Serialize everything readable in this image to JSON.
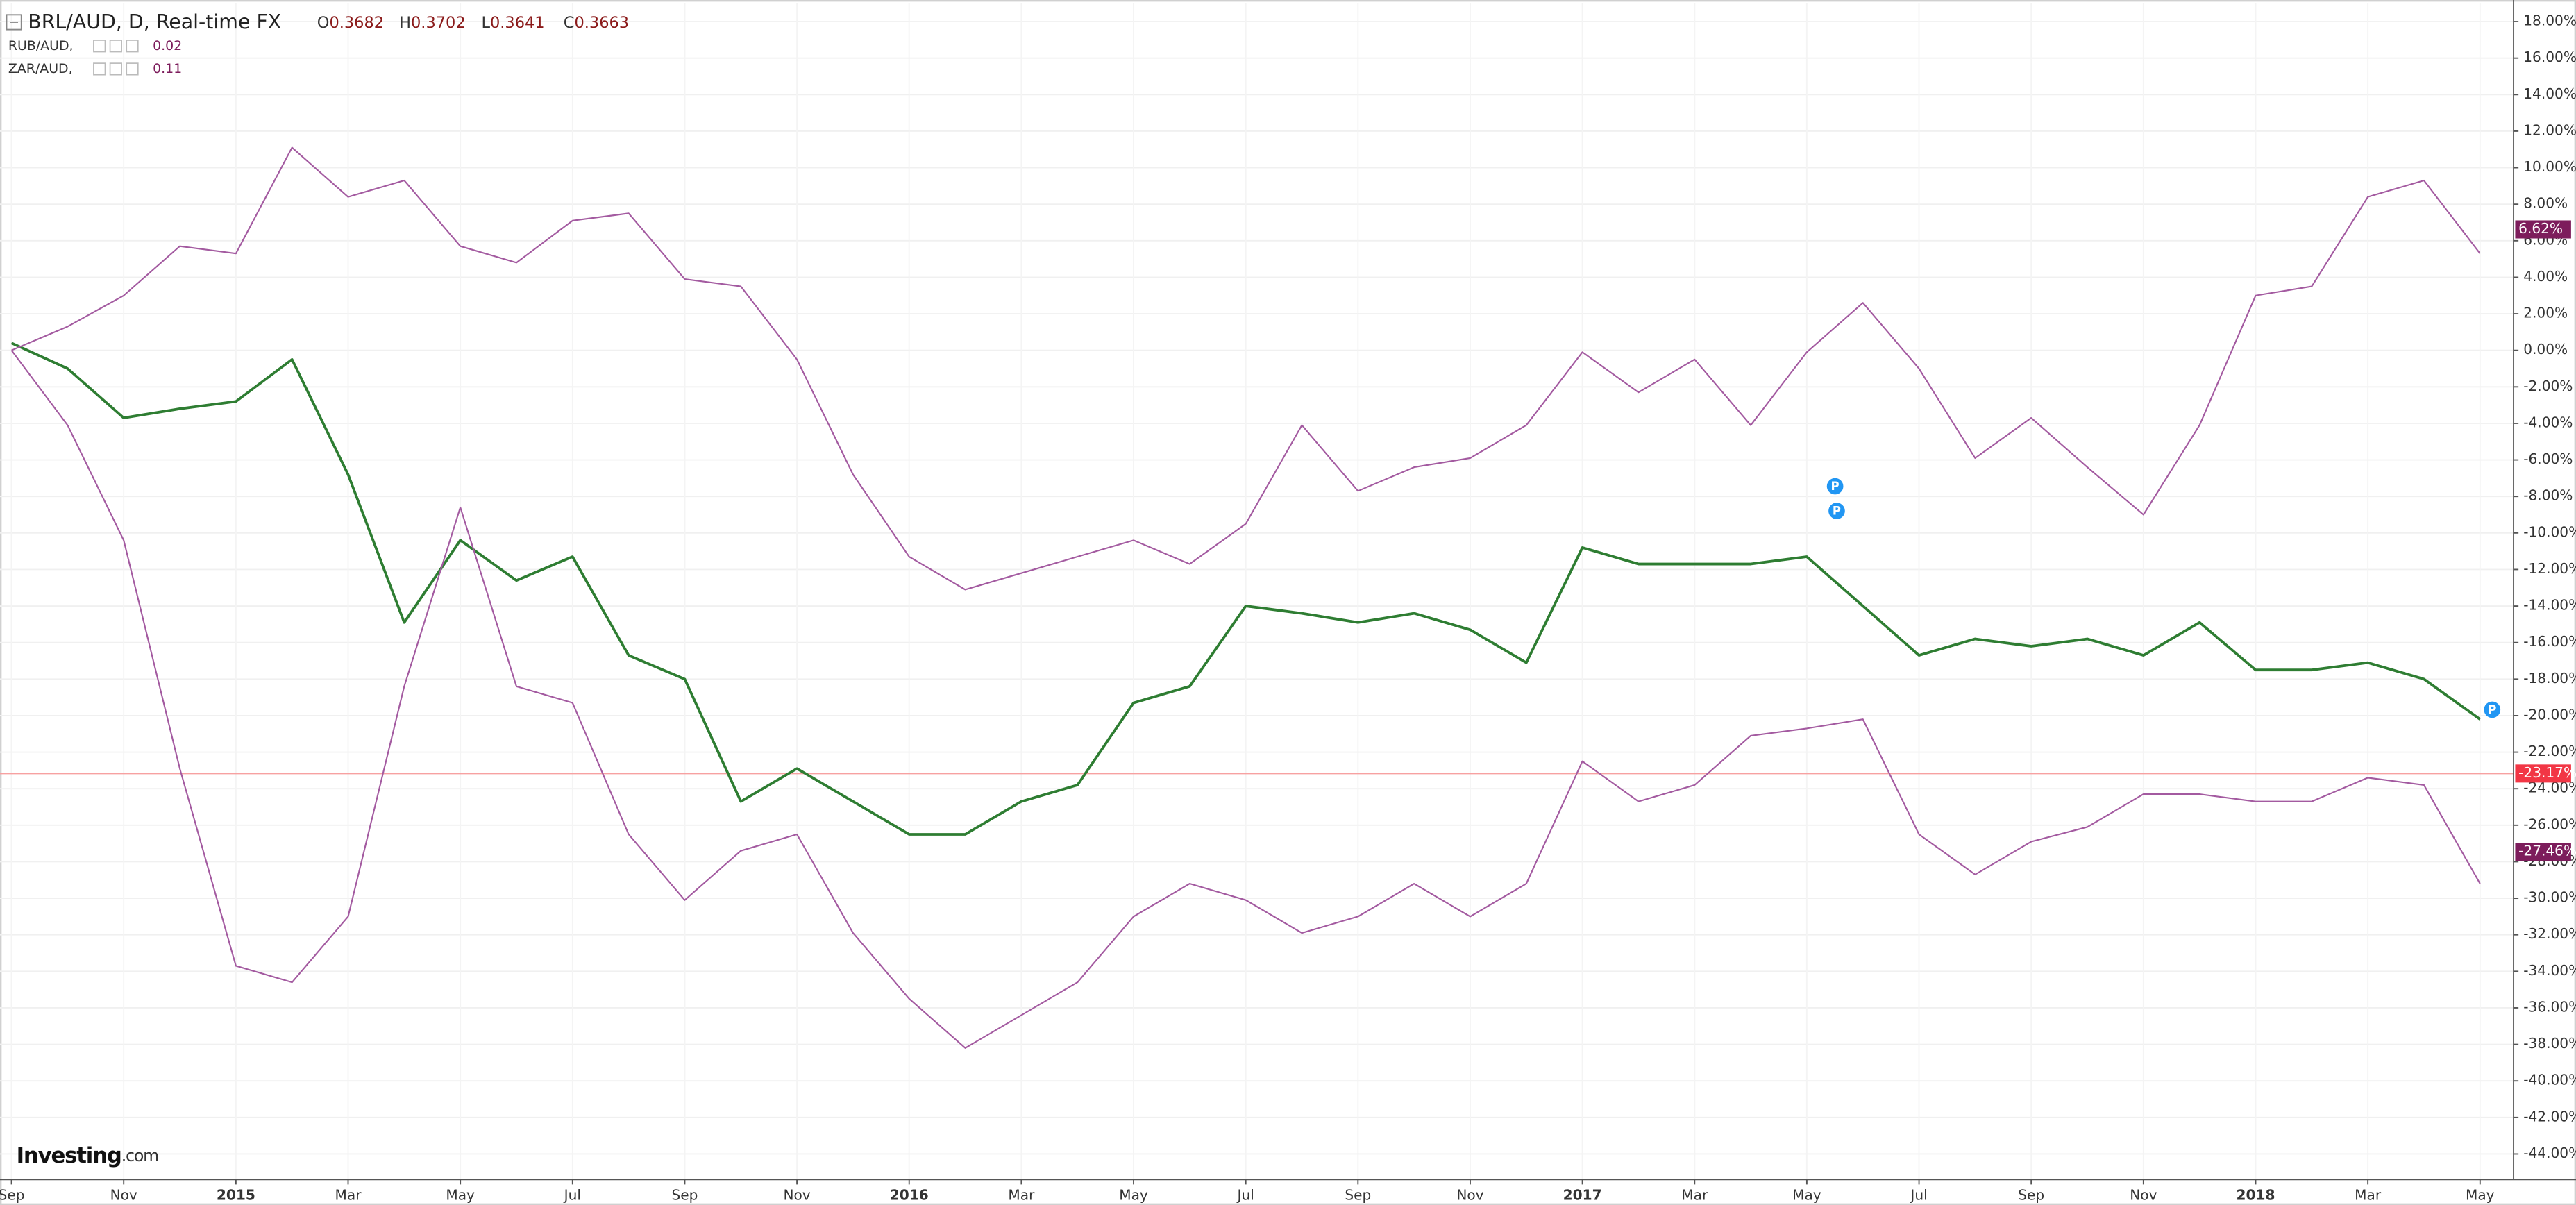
{
  "chart_data": {
    "type": "line",
    "title": "BRL/AUD, D, Real-time FX",
    "ohlc": [
      {
        "label": "O",
        "value": 0.3682
      },
      {
        "label": "H",
        "value": 0.3702
      },
      {
        "label": "L",
        "value": 0.3641
      },
      {
        "label": "C",
        "value": 0.3663
      }
    ],
    "logo": [
      "Investing",
      ".com"
    ],
    "marker_label": "P",
    "categories": [
      "Sep",
      null,
      "Nov",
      null,
      "2015",
      null,
      "Mar",
      null,
      "May",
      null,
      "Jul",
      null,
      "Sep",
      null,
      "Nov",
      null,
      "2016",
      null,
      "Mar",
      null,
      "May",
      null,
      "Jul",
      null,
      "Sep",
      null,
      "Nov",
      null,
      "2017",
      null,
      "Mar",
      null,
      "May",
      null,
      "Jul",
      null,
      "Sep",
      null,
      "Nov",
      null,
      "2018",
      null,
      "Mar",
      null,
      "May"
    ],
    "series": [
      {
        "color": "#2e7d32",
        "label_color": "#f23645",
        "values": [
          0.4,
          -1.0,
          -3.7,
          -3.2,
          -2.8,
          -0.5,
          -6.8,
          -14.9,
          -10.4,
          -12.6,
          -11.3,
          -16.7,
          -18.0,
          -24.7,
          -22.9,
          -24.7,
          -26.5,
          -26.5,
          -24.7,
          -23.8,
          -19.3,
          -18.4,
          -14.0,
          -14.4,
          -14.9,
          -14.4,
          -15.3,
          -17.1,
          -10.8,
          -11.7,
          -11.7,
          -11.7,
          -11.3,
          -14.0,
          -16.7,
          -15.8,
          -16.2,
          -15.8,
          -16.7,
          -14.9,
          -17.5,
          -17.5,
          -17.1,
          -18.0,
          -20.2
        ],
        "last": {
          "value": -23.17,
          "label": "-23.17%"
        }
      },
      {
        "name": "RUB/AUD,",
        "legend_value": 0.02,
        "color": "#a35aa0",
        "label_color": "#7d1d5c",
        "values": [
          0,
          -4.1,
          -10.4,
          -22.9,
          -33.7,
          -34.6,
          -31.0,
          -18.4,
          -8.6,
          -18.4,
          -19.3,
          -26.5,
          -30.1,
          -27.4,
          -26.5,
          -31.9,
          -35.5,
          -38.2,
          -36.4,
          -34.6,
          -31.0,
          -29.2,
          -30.1,
          -31.9,
          -31.0,
          -29.2,
          -31.0,
          -29.2,
          -22.5,
          -24.7,
          -23.8,
          -21.1,
          -20.7,
          -20.2,
          -26.5,
          -28.7,
          -26.9,
          -26.1,
          -24.3,
          -24.3,
          -24.7,
          -24.7,
          -23.4,
          -23.8,
          -29.2
        ],
        "last": {
          "value": -27.46,
          "label": "-27.46%"
        }
      },
      {
        "name": "ZAR/AUD,",
        "legend_value": 0.11,
        "color": "#a35aa0",
        "label_color": "#7d1d5c",
        "values": [
          0,
          1.3,
          3.0,
          5.7,
          5.3,
          11.1,
          8.4,
          9.3,
          5.7,
          4.8,
          7.1,
          7.5,
          3.9,
          3.5,
          -0.5,
          -6.8,
          -11.3,
          -13.1,
          -12.2,
          -11.3,
          -10.4,
          -11.7,
          -9.5,
          -4.1,
          -7.7,
          -6.4,
          -5.9,
          -4.1,
          -0.1,
          -2.3,
          -0.5,
          -4.1,
          -0.1,
          2.6,
          -1.0,
          -5.9,
          -3.7,
          -6.4,
          -9.0,
          -4.1,
          3.0,
          3.5,
          8.4,
          9.3,
          5.3
        ],
        "last": {
          "value": 6.62,
          "label": "6.62%"
        }
      }
    ],
    "ylim": [
      -45.4,
      19
    ],
    "yticks": [
      {
        "value": 18,
        "label": "18.00%"
      },
      {
        "value": 16,
        "label": "16.00%"
      },
      {
        "value": 14,
        "label": "14.00%"
      },
      {
        "value": 12,
        "label": "12.00%"
      },
      {
        "value": 10,
        "label": "10.00%"
      },
      {
        "value": 8,
        "label": "8.00%"
      },
      {
        "value": 6,
        "label": "6.00%"
      },
      {
        "value": 4,
        "label": "4.00%"
      },
      {
        "value": 2,
        "label": "2.00%"
      },
      {
        "value": 0,
        "label": "0.00%"
      },
      {
        "value": -2,
        "label": "-2.00%"
      },
      {
        "value": -4,
        "label": "-4.00%"
      },
      {
        "value": -6,
        "label": "-6.00%"
      },
      {
        "value": -8,
        "label": "-8.00%"
      },
      {
        "value": -10,
        "label": "-10.00%"
      },
      {
        "value": -12,
        "label": "-12.00%"
      },
      {
        "value": -14,
        "label": "-14.00%"
      },
      {
        "value": -16,
        "label": "-16.00%"
      },
      {
        "value": -18,
        "label": "-18.00%"
      },
      {
        "value": -20,
        "label": "-20.00%"
      },
      {
        "value": -22,
        "label": "-22.00%"
      },
      {
        "value": -24,
        "label": "-24.00%"
      },
      {
        "value": -26,
        "label": "-26.00%"
      },
      {
        "value": -28,
        "label": "-28.00%"
      },
      {
        "value": -30,
        "label": "-30.00%"
      },
      {
        "value": -32,
        "label": "-32.00%"
      },
      {
        "value": -34,
        "label": "-34.00%"
      },
      {
        "value": -36,
        "label": "-36.00%"
      },
      {
        "value": -38,
        "label": "-38.00%"
      },
      {
        "value": -40,
        "label": "-40.00%"
      },
      {
        "value": -42,
        "label": "-42.00%"
      },
      {
        "value": -44,
        "label": "-44.00%"
      }
    ],
    "grid": true
  }
}
